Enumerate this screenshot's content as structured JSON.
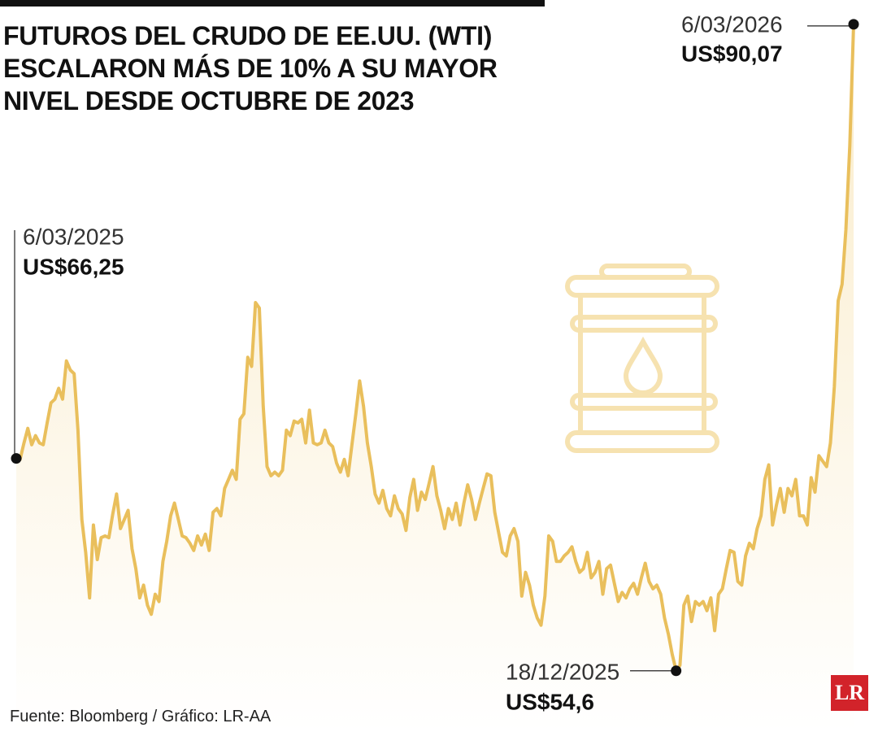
{
  "chart_data": {
    "type": "line",
    "title": "FUTUROS DEL CRUDO DE EE.UU. (WTI) ESCALARON MÁS DE 10% A SU MAYOR NIVEL DESDE OCTUBRE DE 2023",
    "color": "#e9bf5c",
    "ylim": [
      52,
      91
    ],
    "values": [
      66.25,
      66.2,
      67.1,
      67.9,
      67.0,
      67.5,
      67.1,
      67.0,
      68.2,
      69.3,
      69.5,
      70.1,
      69.5,
      71.6,
      71.1,
      70.9,
      67.8,
      62.9,
      61.1,
      58.6,
      62.6,
      60.7,
      61.9,
      62.0,
      61.9,
      63.2,
      64.3,
      62.4,
      62.9,
      63.4,
      61.3,
      60.2,
      58.6,
      59.3,
      58.2,
      57.7,
      58.8,
      58.4,
      60.6,
      61.7,
      63.1,
      63.8,
      62.9,
      62.0,
      61.9,
      61.6,
      61.2,
      62.0,
      61.5,
      62.1,
      61.2,
      63.3,
      63.5,
      63.1,
      64.6,
      65.1,
      65.6,
      65.1,
      68.4,
      68.7,
      71.8,
      71.3,
      74.8,
      74.5,
      69.1,
      65.8,
      65.3,
      65.5,
      65.3,
      65.6,
      67.8,
      67.5,
      68.3,
      68.2,
      68.4,
      67.1,
      68.9,
      67.1,
      67.0,
      67.1,
      67.8,
      67.1,
      66.9,
      66.0,
      65.5,
      66.2,
      65.3,
      67.0,
      68.7,
      70.5,
      69.1,
      67.1,
      65.8,
      64.3,
      63.8,
      64.5,
      63.5,
      63.1,
      64.2,
      63.5,
      63.2,
      62.3,
      64.1,
      65.1,
      63.4,
      64.4,
      64.0,
      64.9,
      65.8,
      64.2,
      63.4,
      62.4,
      63.5,
      62.9,
      63.8,
      62.6,
      63.8,
      64.8,
      64.0,
      62.9,
      63.8,
      64.6,
      65.4,
      65.3,
      63.3,
      62.2,
      61.1,
      60.9,
      62.0,
      62.4,
      61.7,
      58.7,
      60.0,
      59.3,
      58.2,
      57.5,
      57.1,
      58.7,
      62.0,
      61.7,
      60.6,
      60.6,
      60.9,
      61.1,
      61.4,
      60.6,
      60.0,
      60.2,
      61.1,
      59.7,
      60.0,
      60.6,
      58.8,
      60.2,
      60.4,
      59.4,
      58.4,
      58.9,
      58.6,
      59.1,
      59.4,
      58.8,
      59.7,
      60.5,
      59.5,
      59.1,
      59.3,
      58.8,
      57.5,
      56.6,
      55.5,
      54.6,
      54.9,
      58.2,
      58.7,
      57.3,
      58.4,
      58.2,
      58.4,
      57.9,
      58.6,
      56.8,
      58.8,
      59.1,
      60.2,
      61.2,
      61.1,
      59.5,
      59.3,
      60.9,
      61.6,
      61.3,
      62.4,
      63.1,
      65.1,
      65.9,
      62.6,
      63.7,
      64.6,
      63.3,
      64.6,
      64.2,
      65.1,
      63.1,
      63.1,
      62.6,
      65.2,
      64.4,
      66.4,
      66.1,
      65.8,
      67.1,
      70.2,
      74.9,
      75.8,
      78.8,
      83.4,
      90.07
    ],
    "annotations": [
      {
        "date": "6/03/2025",
        "label": "US$66,25",
        "value": 66.25
      },
      {
        "date": "18/12/2025",
        "label": "US$54,6",
        "value": 54.6
      },
      {
        "date": "6/03/2026",
        "label": "US$90,07",
        "value": 90.07
      }
    ],
    "source": "Fuente: Bloomberg / Gráfico: LR-AA",
    "logo": "LR"
  }
}
